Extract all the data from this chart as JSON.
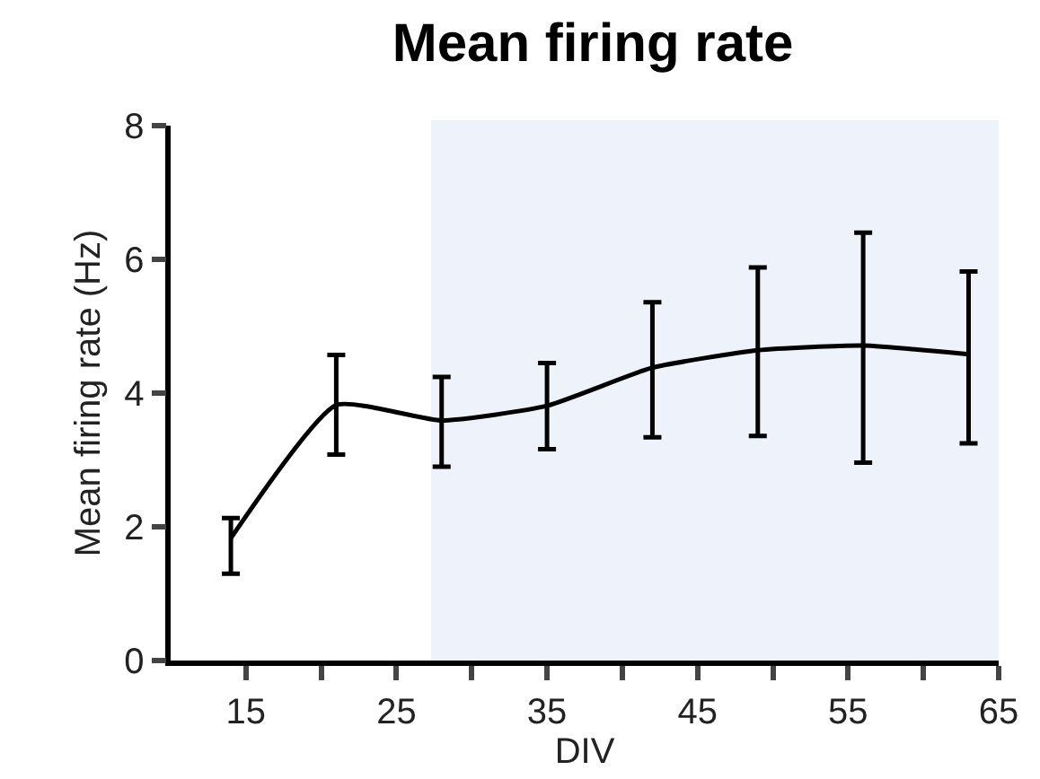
{
  "chart_data": {
    "type": "line",
    "title": "Mean firing rate",
    "xlabel": "DIV",
    "ylabel": "Mean firing rate (Hz)",
    "x": [
      14,
      21,
      28,
      35,
      42,
      49,
      56,
      63
    ],
    "series": [
      {
        "color": "#000000",
        "values": [
          1.83,
          3.82,
          3.59,
          3.81,
          4.38,
          4.64,
          4.71,
          4.58
        ],
        "errors": [
          [
            1.3,
            2.13
          ],
          [
            3.08,
            4.57
          ],
          [
            2.9,
            4.24
          ],
          [
            3.16,
            4.45
          ],
          [
            3.34,
            5.36
          ],
          [
            3.36,
            5.88
          ],
          [
            2.96,
            6.4
          ],
          [
            3.25,
            5.82
          ]
        ]
      }
    ],
    "xlim": [
      10,
      65
    ],
    "xticks": [
      15,
      {
        "value": 20,
        "label": null
      },
      25,
      {
        "value": 30,
        "label": null
      },
      35,
      {
        "value": 40,
        "label": null
      },
      45,
      {
        "value": 50,
        "label": null
      },
      55,
      {
        "value": 60,
        "label": null
      },
      65
    ],
    "ylim": [
      0,
      8
    ],
    "yticks": [
      0,
      2,
      4,
      6,
      8
    ],
    "bands": [
      {
        "axis": "x",
        "from": 27.3,
        "to": 65.5,
        "color": "#eef3fb"
      }
    ],
    "grid": false,
    "legend": false,
    "marker": "none",
    "line_style": "solid"
  }
}
